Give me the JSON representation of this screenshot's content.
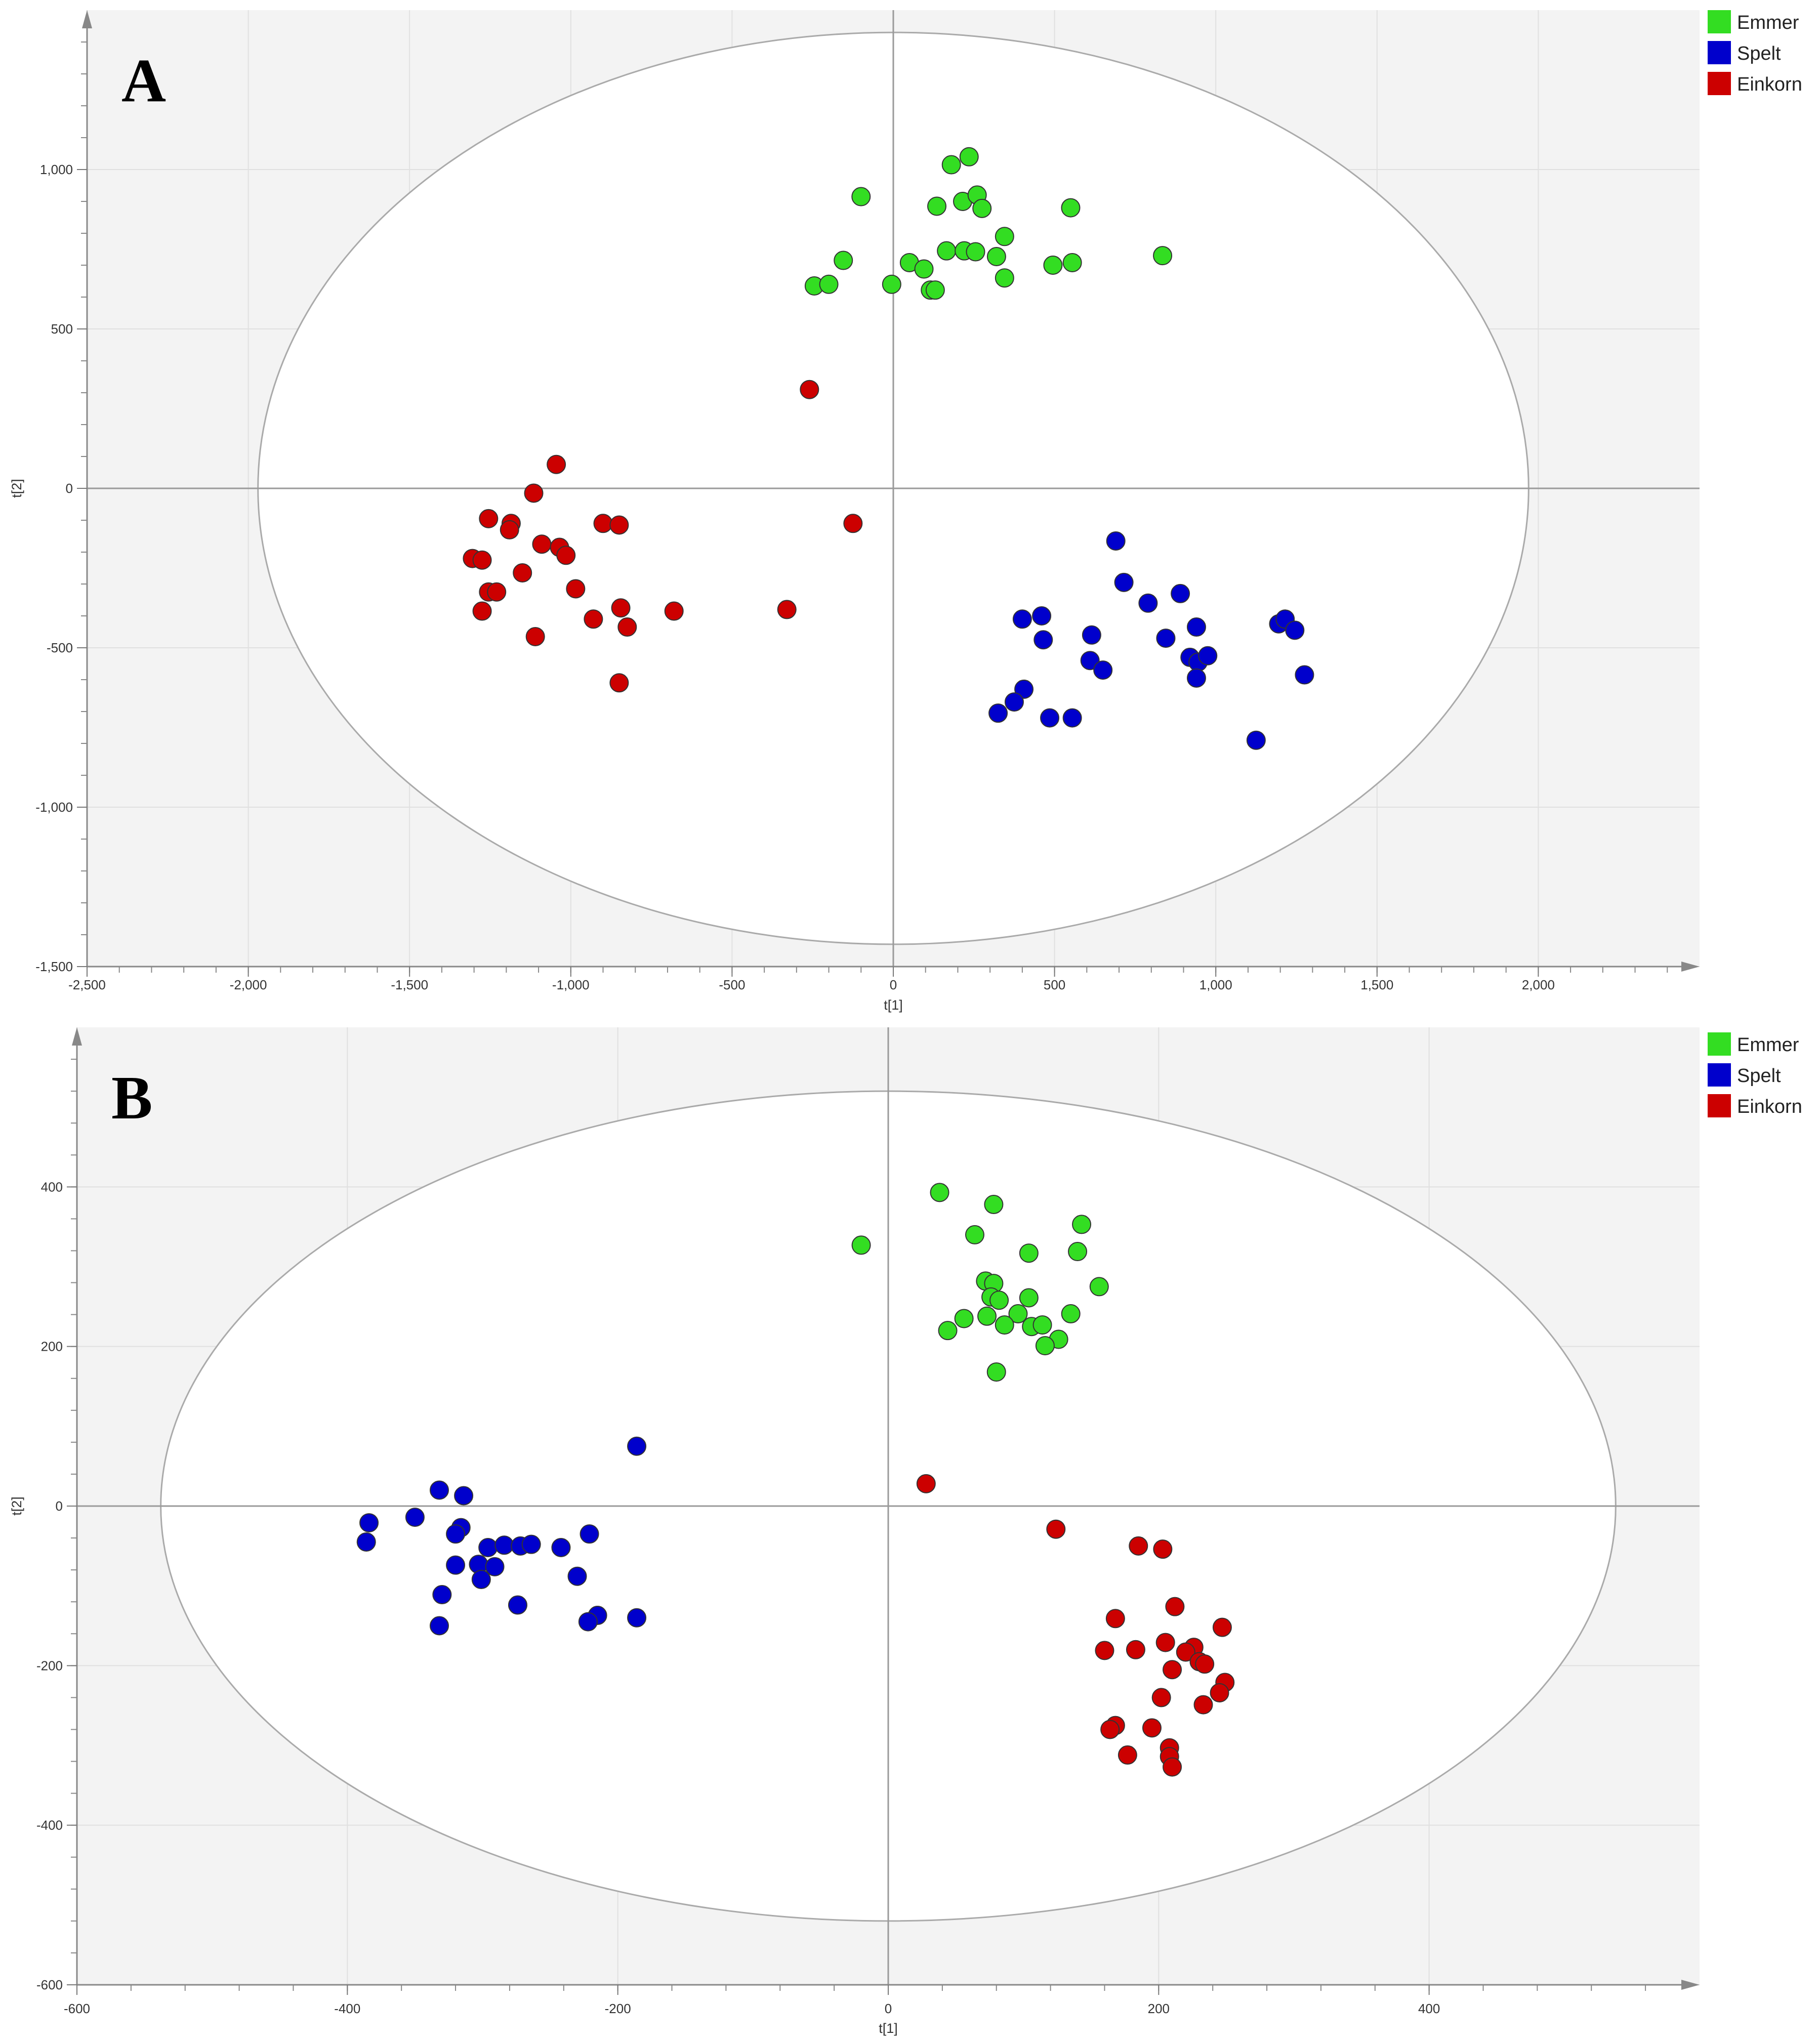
{
  "legend_colors": {
    "Emmer": "#33dd22",
    "Spelt": "#0000cc",
    "Einkorn": "#cc0000"
  },
  "chart_data": [
    {
      "panel_label": "A",
      "type": "scatter",
      "xlabel": "t[1]",
      "ylabel": "t[2]",
      "xlim": [
        -2500,
        2500
      ],
      "ylim": [
        -1500,
        1500
      ],
      "xticks": [
        -2500,
        -2000,
        -1500,
        -1000,
        -500,
        0,
        500,
        1000,
        1500,
        2000
      ],
      "yticks": [
        -1500,
        -1000,
        -500,
        0,
        500,
        1000
      ],
      "xtick_labels": [
        "-2,500",
        "-2,000",
        "-1,500",
        "-1,000",
        "-500",
        "0",
        "500",
        "1,000",
        "1,500",
        "2,000"
      ],
      "ytick_labels": [
        "-1,500",
        "-1,000",
        "-500",
        "0",
        "500",
        "1,000"
      ],
      "ellipse": {
        "rx": 1970,
        "ry": 1430
      },
      "legend": [
        "Emmer",
        "Spelt",
        "Einkorn"
      ],
      "series": [
        {
          "name": "Emmer",
          "points": [
            [
              -100,
              915
            ],
            [
              180,
              1015
            ],
            [
              235,
              1040
            ],
            [
              135,
              885
            ],
            [
              215,
              900
            ],
            [
              260,
              920
            ],
            [
              275,
              878
            ],
            [
              550,
              880
            ],
            [
              -155,
              715
            ],
            [
              -245,
              635
            ],
            [
              -200,
              640
            ],
            [
              -5,
              640
            ],
            [
              50,
              708
            ],
            [
              95,
              688
            ],
            [
              115,
              622
            ],
            [
              130,
              622
            ],
            [
              165,
              745
            ],
            [
              220,
              745
            ],
            [
              255,
              742
            ],
            [
              320,
              727
            ],
            [
              345,
              790
            ],
            [
              345,
              660
            ],
            [
              495,
              700
            ],
            [
              555,
              708
            ],
            [
              835,
              730
            ]
          ]
        },
        {
          "name": "Spelt",
          "points": [
            [
              690,
              -165
            ],
            [
              715,
              -295
            ],
            [
              790,
              -360
            ],
            [
              890,
              -330
            ],
            [
              845,
              -470
            ],
            [
              940,
              -435
            ],
            [
              920,
              -530
            ],
            [
              945,
              -545
            ],
            [
              975,
              -525
            ],
            [
              940,
              -595
            ],
            [
              1195,
              -425
            ],
            [
              1215,
              -410
            ],
            [
              1245,
              -445
            ],
            [
              1275,
              -585
            ],
            [
              400,
              -410
            ],
            [
              460,
              -400
            ],
            [
              465,
              -475
            ],
            [
              615,
              -460
            ],
            [
              610,
              -540
            ],
            [
              650,
              -570
            ],
            [
              405,
              -630
            ],
            [
              375,
              -670
            ],
            [
              325,
              -705
            ],
            [
              485,
              -720
            ],
            [
              555,
              -720
            ],
            [
              1125,
              -790
            ]
          ]
        },
        {
          "name": "Einkorn",
          "points": [
            [
              -260,
              310
            ],
            [
              -1045,
              75
            ],
            [
              -1115,
              -15
            ],
            [
              -125,
              -110
            ],
            [
              -1255,
              -95
            ],
            [
              -1185,
              -110
            ],
            [
              -1190,
              -130
            ],
            [
              -900,
              -110
            ],
            [
              -850,
              -115
            ],
            [
              -1090,
              -175
            ],
            [
              -1035,
              -185
            ],
            [
              -1015,
              -210
            ],
            [
              -1305,
              -220
            ],
            [
              -1275,
              -225
            ],
            [
              -1150,
              -265
            ],
            [
              -985,
              -315
            ],
            [
              -1255,
              -325
            ],
            [
              -1230,
              -325
            ],
            [
              -1275,
              -385
            ],
            [
              -930,
              -410
            ],
            [
              -845,
              -375
            ],
            [
              -825,
              -435
            ],
            [
              -1110,
              -465
            ],
            [
              -680,
              -385
            ],
            [
              -330,
              -380
            ],
            [
              -850,
              -610
            ]
          ]
        }
      ]
    },
    {
      "panel_label": "B",
      "type": "scatter",
      "xlabel": "t[1]",
      "ylabel": "t[2]",
      "xlim": [
        -600,
        600
      ],
      "ylim": [
        -600,
        600
      ],
      "xticks": [
        -600,
        -400,
        -200,
        0,
        200,
        400
      ],
      "yticks": [
        -600,
        -400,
        -200,
        0,
        200,
        400
      ],
      "xtick_labels": [
        "-600",
        "-400",
        "-200",
        "0",
        "200",
        "400"
      ],
      "ytick_labels": [
        "-600",
        "-400",
        "-200",
        "0",
        "200",
        "400"
      ],
      "ellipse": {
        "rx": 538,
        "ry": 520
      },
      "legend": [
        "Emmer",
        "Spelt",
        "Einkorn"
      ],
      "series": [
        {
          "name": "Emmer",
          "points": [
            [
              -20,
              327
            ],
            [
              38,
              393
            ],
            [
              78,
              378
            ],
            [
              64,
              340
            ],
            [
              104,
              317
            ],
            [
              143,
              353
            ],
            [
              140,
              319
            ],
            [
              156,
              275
            ],
            [
              72,
              282
            ],
            [
              78,
              279
            ],
            [
              76,
              262
            ],
            [
              82,
              258
            ],
            [
              104,
              261
            ],
            [
              96,
              241
            ],
            [
              73,
              238
            ],
            [
              56,
              235
            ],
            [
              44,
              220
            ],
            [
              86,
              227
            ],
            [
              106,
              225
            ],
            [
              114,
              227
            ],
            [
              135,
              241
            ],
            [
              126,
              209
            ],
            [
              116,
              201
            ],
            [
              80,
              168
            ]
          ]
        },
        {
          "name": "Spelt",
          "points": [
            [
              -186,
              75
            ],
            [
              -332,
              20
            ],
            [
              -314,
              13
            ],
            [
              -350,
              -14
            ],
            [
              -384,
              -21
            ],
            [
              -386,
              -45
            ],
            [
              -316,
              -27
            ],
            [
              -320,
              -35
            ],
            [
              -296,
              -52
            ],
            [
              -284,
              -49
            ],
            [
              -272,
              -50
            ],
            [
              -264,
              -48
            ],
            [
              -242,
              -52
            ],
            [
              -221,
              -35
            ],
            [
              -320,
              -74
            ],
            [
              -303,
              -73
            ],
            [
              -291,
              -76
            ],
            [
              -301,
              -92
            ],
            [
              -230,
              -88
            ],
            [
              -330,
              -111
            ],
            [
              -274,
              -124
            ],
            [
              -215,
              -137
            ],
            [
              -222,
              -145
            ],
            [
              -332,
              -150
            ],
            [
              -186,
              -140
            ]
          ]
        },
        {
          "name": "Einkorn",
          "points": [
            [
              28,
              28
            ],
            [
              124,
              -29
            ],
            [
              185,
              -50
            ],
            [
              203,
              -54
            ],
            [
              212,
              -126
            ],
            [
              247,
              -152
            ],
            [
              168,
              -141
            ],
            [
              160,
              -181
            ],
            [
              183,
              -180
            ],
            [
              205,
              -171
            ],
            [
              226,
              -177
            ],
            [
              220,
              -183
            ],
            [
              230,
              -195
            ],
            [
              234,
              -198
            ],
            [
              210,
              -205
            ],
            [
              249,
              -221
            ],
            [
              245,
              -234
            ],
            [
              202,
              -240
            ],
            [
              233,
              -249
            ],
            [
              168,
              -275
            ],
            [
              164,
              -280
            ],
            [
              195,
              -278
            ],
            [
              177,
              -312
            ],
            [
              208,
              -303
            ],
            [
              208,
              -314
            ],
            [
              210,
              -327
            ]
          ]
        }
      ]
    }
  ]
}
